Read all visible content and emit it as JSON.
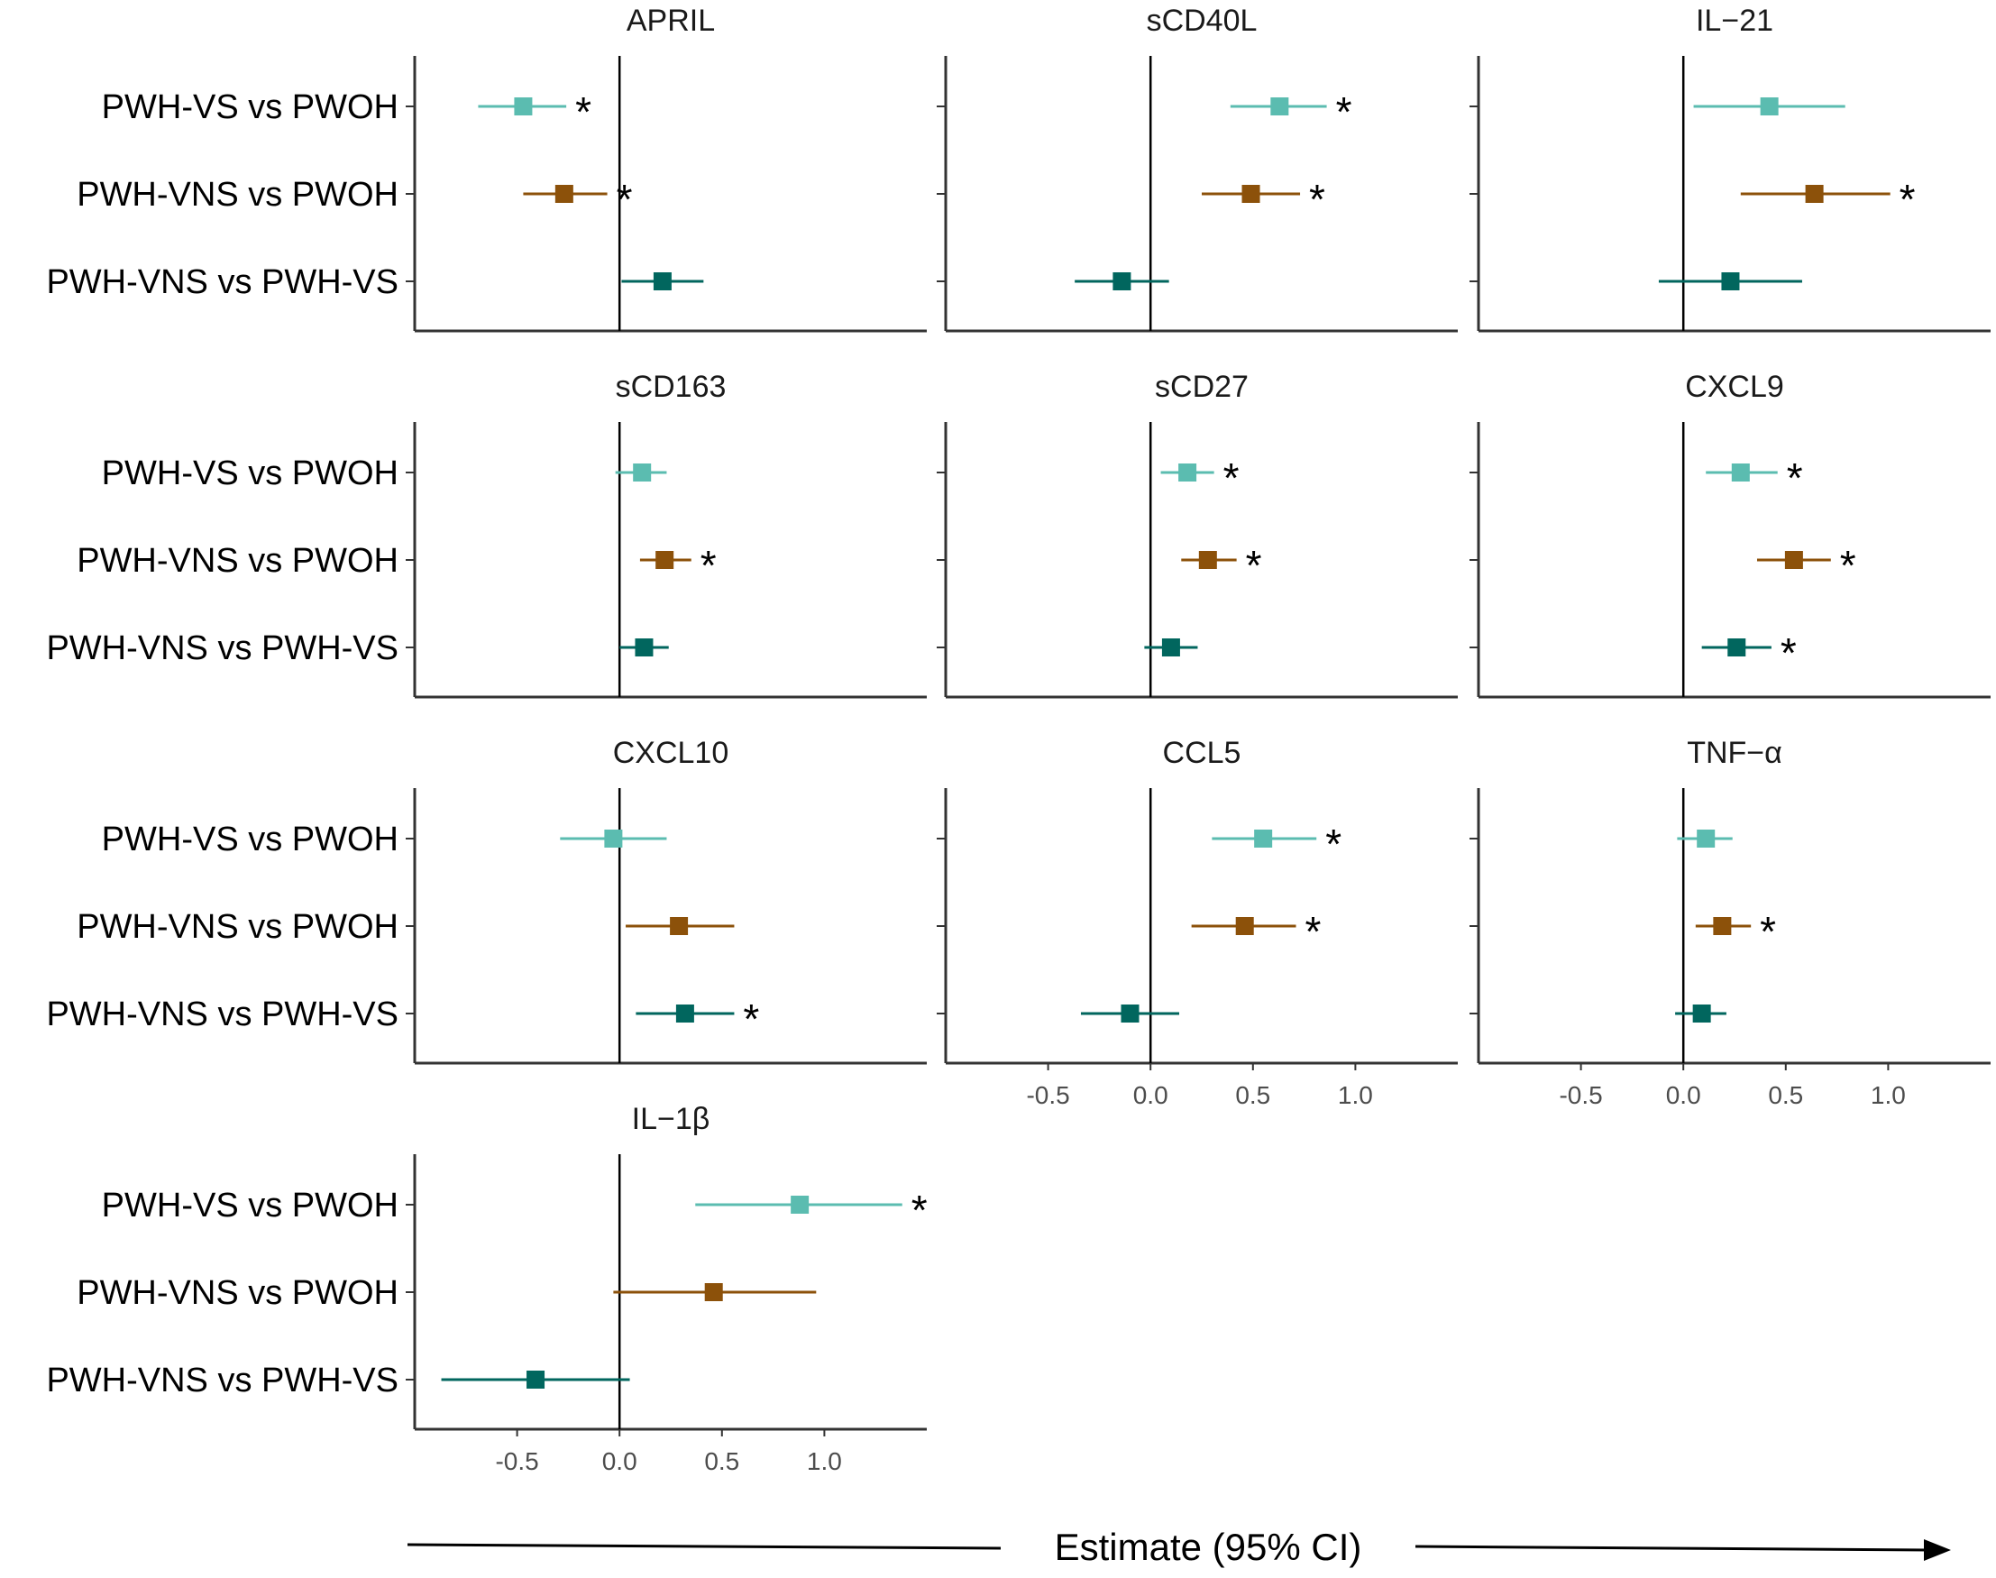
{
  "chart_data": {
    "type": "forest",
    "xlabel": "Estimate (95% CI)",
    "xlim": [
      -1.0,
      1.5
    ],
    "xticks": [
      "-0.5",
      "0.0",
      "0.5",
      "1.0"
    ],
    "rows": [
      "PWH-VS vs PWOH",
      "PWH-VNS vs PWOH",
      "PWH-VNS vs PWH-VS"
    ],
    "colors": {
      "PWH-VS vs PWOH": "#5bbcb0",
      "PWH-VNS vs PWOH": "#8c510a",
      "PWH-VNS vs PWH-VS": "#01665e"
    },
    "panels": [
      {
        "title": "APRIL",
        "estimates": [
          {
            "comparison": "PWH-VS vs PWOH",
            "est": -0.47,
            "lo": -0.69,
            "hi": -0.26,
            "sig": "*"
          },
          {
            "comparison": "PWH-VNS vs PWOH",
            "est": -0.27,
            "lo": -0.47,
            "hi": -0.06,
            "sig": "*"
          },
          {
            "comparison": "PWH-VNS vs PWH-VS",
            "est": 0.21,
            "lo": 0.01,
            "hi": 0.41,
            "sig": ""
          }
        ]
      },
      {
        "title": "sCD40L",
        "estimates": [
          {
            "comparison": "PWH-VS vs PWOH",
            "est": 0.63,
            "lo": 0.39,
            "hi": 0.86,
            "sig": "*"
          },
          {
            "comparison": "PWH-VNS vs PWOH",
            "est": 0.49,
            "lo": 0.25,
            "hi": 0.73,
            "sig": "*"
          },
          {
            "comparison": "PWH-VNS vs PWH-VS",
            "est": -0.14,
            "lo": -0.37,
            "hi": 0.09,
            "sig": ""
          }
        ]
      },
      {
        "title": "IL−21",
        "estimates": [
          {
            "comparison": "PWH-VS vs PWOH",
            "est": 0.42,
            "lo": 0.05,
            "hi": 0.79,
            "sig": ""
          },
          {
            "comparison": "PWH-VNS vs PWOH",
            "est": 0.64,
            "lo": 0.28,
            "hi": 1.01,
            "sig": "*"
          },
          {
            "comparison": "PWH-VNS vs PWH-VS",
            "est": 0.23,
            "lo": -0.12,
            "hi": 0.58,
            "sig": ""
          }
        ]
      },
      {
        "title": "sCD163",
        "estimates": [
          {
            "comparison": "PWH-VS vs PWOH",
            "est": 0.11,
            "lo": -0.02,
            "hi": 0.23,
            "sig": ""
          },
          {
            "comparison": "PWH-VNS vs PWOH",
            "est": 0.22,
            "lo": 0.1,
            "hi": 0.35,
            "sig": "*"
          },
          {
            "comparison": "PWH-VNS vs PWH-VS",
            "est": 0.12,
            "lo": 0.0,
            "hi": 0.24,
            "sig": ""
          }
        ]
      },
      {
        "title": "sCD27",
        "estimates": [
          {
            "comparison": "PWH-VS vs PWOH",
            "est": 0.18,
            "lo": 0.05,
            "hi": 0.31,
            "sig": "*"
          },
          {
            "comparison": "PWH-VNS vs PWOH",
            "est": 0.28,
            "lo": 0.15,
            "hi": 0.42,
            "sig": "*"
          },
          {
            "comparison": "PWH-VNS vs PWH-VS",
            "est": 0.1,
            "lo": -0.03,
            "hi": 0.23,
            "sig": ""
          }
        ]
      },
      {
        "title": "CXCL9",
        "estimates": [
          {
            "comparison": "PWH-VS vs PWOH",
            "est": 0.28,
            "lo": 0.11,
            "hi": 0.46,
            "sig": "*"
          },
          {
            "comparison": "PWH-VNS vs PWOH",
            "est": 0.54,
            "lo": 0.36,
            "hi": 0.72,
            "sig": "*"
          },
          {
            "comparison": "PWH-VNS vs PWH-VS",
            "est": 0.26,
            "lo": 0.09,
            "hi": 0.43,
            "sig": "*"
          }
        ]
      },
      {
        "title": "CXCL10",
        "estimates": [
          {
            "comparison": "PWH-VS vs PWOH",
            "est": -0.03,
            "lo": -0.29,
            "hi": 0.23,
            "sig": ""
          },
          {
            "comparison": "PWH-VNS vs PWOH",
            "est": 0.29,
            "lo": 0.03,
            "hi": 0.56,
            "sig": ""
          },
          {
            "comparison": "PWH-VNS vs PWH-VS",
            "est": 0.32,
            "lo": 0.08,
            "hi": 0.56,
            "sig": "*"
          }
        ]
      },
      {
        "title": "CCL5",
        "estimates": [
          {
            "comparison": "PWH-VS vs PWOH",
            "est": 0.55,
            "lo": 0.3,
            "hi": 0.81,
            "sig": "*"
          },
          {
            "comparison": "PWH-VNS vs PWOH",
            "est": 0.46,
            "lo": 0.2,
            "hi": 0.71,
            "sig": "*"
          },
          {
            "comparison": "PWH-VNS vs PWH-VS",
            "est": -0.1,
            "lo": -0.34,
            "hi": 0.14,
            "sig": ""
          }
        ]
      },
      {
        "title": "TNF−α",
        "estimates": [
          {
            "comparison": "PWH-VS vs PWOH",
            "est": 0.11,
            "lo": -0.03,
            "hi": 0.24,
            "sig": ""
          },
          {
            "comparison": "PWH-VNS vs PWOH",
            "est": 0.19,
            "lo": 0.06,
            "hi": 0.33,
            "sig": "*"
          },
          {
            "comparison": "PWH-VNS vs PWH-VS",
            "est": 0.09,
            "lo": -0.04,
            "hi": 0.21,
            "sig": ""
          }
        ]
      },
      {
        "title": "IL−1β",
        "estimates": [
          {
            "comparison": "PWH-VS vs PWOH",
            "est": 0.88,
            "lo": 0.37,
            "hi": 1.38,
            "sig": "*"
          },
          {
            "comparison": "PWH-VNS vs PWOH",
            "est": 0.46,
            "lo": -0.03,
            "hi": 0.96,
            "sig": ""
          },
          {
            "comparison": "PWH-VNS vs PWH-VS",
            "est": -0.41,
            "lo": -0.87,
            "hi": 0.05,
            "sig": ""
          }
        ]
      }
    ]
  }
}
